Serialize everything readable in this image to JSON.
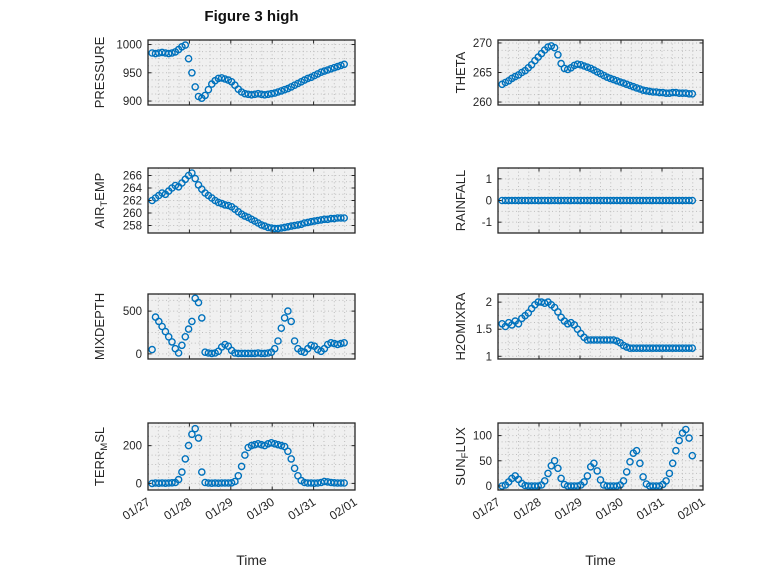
{
  "figure_title": "Figure 3 high",
  "xlabel": "Time",
  "colors": {
    "marker": "#0072BD",
    "axes": "#262626",
    "grid": "#bdbdbd",
    "plot_bg": "#f0f0f0",
    "figure_bg": "#ffffff"
  },
  "xlim": [
    0,
    5
  ],
  "x_ticks": [
    0,
    1,
    2,
    3,
    4,
    5
  ],
  "x_tick_labels": [
    "01/27",
    "01/28",
    "01/29",
    "01/30",
    "01/31",
    "02/01"
  ],
  "x": [
    0.1,
    0.18,
    0.26,
    0.34,
    0.42,
    0.5,
    0.58,
    0.66,
    0.74,
    0.82,
    0.9,
    0.98,
    1.06,
    1.14,
    1.22,
    1.3,
    1.38,
    1.46,
    1.54,
    1.62,
    1.7,
    1.78,
    1.86,
    1.94,
    2.02,
    2.1,
    2.18,
    2.26,
    2.34,
    2.42,
    2.5,
    2.58,
    2.66,
    2.74,
    2.82,
    2.9,
    2.98,
    3.06,
    3.14,
    3.22,
    3.3,
    3.38,
    3.46,
    3.54,
    3.62,
    3.7,
    3.78,
    3.86,
    3.94,
    4.02,
    4.1,
    4.18,
    4.26,
    4.34,
    4.42,
    4.5,
    4.58,
    4.66,
    4.74
  ],
  "chart_data": [
    {
      "type": "scatter",
      "ylabel": "PRESSURE",
      "ylabel_parts": [
        {
          "text": "PRESSURE"
        }
      ],
      "yticks": [
        900,
        950,
        1000
      ],
      "ylim": [
        893,
        1008
      ],
      "y": [
        985,
        984,
        985,
        986,
        985,
        984,
        985,
        987,
        991,
        996,
        999,
        975,
        950,
        925,
        908,
        905,
        910,
        920,
        930,
        936,
        940,
        941,
        939,
        937,
        934,
        928,
        921,
        916,
        913,
        912,
        911,
        912,
        913,
        912,
        911,
        912,
        913,
        914,
        916,
        918,
        920,
        922,
        925,
        928,
        931,
        934,
        937,
        940,
        942,
        945,
        948,
        951,
        953,
        955,
        957,
        959,
        961,
        963,
        965
      ]
    },
    {
      "type": "scatter",
      "ylabel": "THETA",
      "ylabel_parts": [
        {
          "text": "THETA"
        }
      ],
      "yticks": [
        260,
        265,
        270
      ],
      "ylim": [
        259.5,
        270.5
      ],
      "y": [
        263,
        263.3,
        263.6,
        264,
        264.3,
        264.6,
        265,
        265.3,
        265.8,
        266.3,
        267,
        267.6,
        268.2,
        268.8,
        269.3,
        269.5,
        269.2,
        268,
        266.5,
        265.7,
        265.5,
        265.8,
        266.2,
        266.4,
        266.3,
        266.1,
        265.9,
        265.7,
        265.4,
        265.1,
        264.8,
        264.5,
        264.2,
        264,
        263.8,
        263.6,
        263.4,
        263.2,
        263,
        262.8,
        262.6,
        262.4,
        262.2,
        262,
        261.9,
        261.8,
        261.7,
        261.7,
        261.6,
        261.6,
        261.5,
        261.5,
        261.6,
        261.6,
        261.5,
        261.5,
        261.5,
        261.4,
        261.4
      ]
    },
    {
      "type": "scatter",
      "ylabel": "AIR_TEMP",
      "ylabel_parts": [
        {
          "text": "AIR"
        },
        {
          "text": "T",
          "sub": true
        },
        {
          "text": "EMP"
        }
      ],
      "yticks": [
        258,
        260,
        262,
        264,
        266
      ],
      "ylim": [
        256.8,
        267.2
      ],
      "y": [
        262,
        262.4,
        262.8,
        263.2,
        263,
        263.5,
        264,
        264.4,
        264.2,
        264.8,
        265.4,
        266,
        266.4,
        265.5,
        264.5,
        263.8,
        263.2,
        262.8,
        262.4,
        262,
        261.7,
        261.5,
        261.3,
        261.2,
        261,
        260.6,
        260.2,
        259.8,
        259.5,
        259.3,
        259,
        258.7,
        258.4,
        258.1,
        257.9,
        257.7,
        257.6,
        257.5,
        257.5,
        257.6,
        257.7,
        257.8,
        257.9,
        258,
        258.1,
        258.2,
        258.4,
        258.5,
        258.6,
        258.7,
        258.8,
        258.9,
        259,
        259,
        259.1,
        259.1,
        259.2,
        259.2,
        259.2
      ]
    },
    {
      "type": "scatter",
      "ylabel": "RAINFALL",
      "ylabel_parts": [
        {
          "text": "RAINFALL"
        }
      ],
      "yticks": [
        -1,
        0,
        1
      ],
      "ylim": [
        -1.5,
        1.5
      ],
      "y": [
        0,
        0,
        0,
        0,
        0,
        0,
        0,
        0,
        0,
        0,
        0,
        0,
        0,
        0,
        0,
        0,
        0,
        0,
        0,
        0,
        0,
        0,
        0,
        0,
        0,
        0,
        0,
        0,
        0,
        0,
        0,
        0,
        0,
        0,
        0,
        0,
        0,
        0,
        0,
        0,
        0,
        0,
        0,
        0,
        0,
        0,
        0,
        0,
        0,
        0,
        0,
        0,
        0,
        0,
        0,
        0,
        0,
        0,
        0
      ]
    },
    {
      "type": "scatter",
      "ylabel": "MIXDEPTH",
      "ylabel_parts": [
        {
          "text": "MIXDEPTH"
        }
      ],
      "yticks": [
        0,
        500
      ],
      "ylim": [
        -60,
        700
      ],
      "y": [
        50,
        430,
        380,
        320,
        260,
        200,
        140,
        60,
        10,
        100,
        200,
        290,
        380,
        650,
        600,
        420,
        20,
        10,
        5,
        10,
        30,
        80,
        110,
        90,
        40,
        10,
        5,
        5,
        5,
        5,
        5,
        5,
        10,
        5,
        5,
        10,
        20,
        60,
        150,
        300,
        420,
        500,
        380,
        150,
        60,
        30,
        20,
        60,
        100,
        90,
        50,
        30,
        60,
        110,
        130,
        120,
        110,
        120,
        130
      ]
    },
    {
      "type": "scatter",
      "ylabel": "H2OMIXRA",
      "ylabel_parts": [
        {
          "text": "H2OMIXRA"
        }
      ],
      "yticks": [
        1,
        1.5,
        2
      ],
      "ylim": [
        0.95,
        2.15
      ],
      "y": [
        1.6,
        1.55,
        1.62,
        1.58,
        1.65,
        1.6,
        1.7,
        1.75,
        1.8,
        1.88,
        1.95,
        2,
        2,
        1.98,
        2,
        1.95,
        1.9,
        1.82,
        1.72,
        1.65,
        1.6,
        1.62,
        1.58,
        1.5,
        1.42,
        1.35,
        1.3,
        1.3,
        1.3,
        1.3,
        1.3,
        1.3,
        1.3,
        1.3,
        1.3,
        1.28,
        1.25,
        1.2,
        1.17,
        1.15,
        1.15,
        1.15,
        1.15,
        1.15,
        1.15,
        1.15,
        1.15,
        1.15,
        1.15,
        1.15,
        1.15,
        1.15,
        1.15,
        1.15,
        1.15,
        1.15,
        1.15,
        1.15,
        1.15
      ]
    },
    {
      "type": "scatter",
      "ylabel": "TERR_MSL",
      "ylabel_parts": [
        {
          "text": "TERR"
        },
        {
          "text": "M",
          "sub": true
        },
        {
          "text": "SL"
        }
      ],
      "yticks": [
        0,
        200
      ],
      "ylim": [
        -35,
        320
      ],
      "y": [
        0,
        2,
        1,
        2,
        1,
        2,
        3,
        5,
        20,
        60,
        130,
        200,
        260,
        290,
        240,
        60,
        5,
        2,
        1,
        2,
        1,
        2,
        2,
        2,
        3,
        10,
        40,
        90,
        150,
        190,
        200,
        205,
        210,
        205,
        200,
        210,
        215,
        210,
        205,
        200,
        195,
        170,
        130,
        80,
        40,
        15,
        5,
        2,
        2,
        1,
        2,
        5,
        10,
        8,
        5,
        3,
        2,
        2,
        2
      ]
    },
    {
      "type": "scatter",
      "ylabel": "SUN_FLUX",
      "ylabel_parts": [
        {
          "text": "SUN"
        },
        {
          "text": "F",
          "sub": true
        },
        {
          "text": "LUX"
        }
      ],
      "yticks": [
        0,
        50,
        100
      ],
      "ylim": [
        -8,
        125
      ],
      "y": [
        0,
        2,
        8,
        15,
        20,
        13,
        5,
        1,
        0,
        0,
        0,
        0,
        2,
        10,
        25,
        40,
        50,
        35,
        15,
        3,
        0,
        0,
        0,
        0,
        2,
        8,
        20,
        38,
        45,
        30,
        12,
        2,
        0,
        0,
        0,
        0,
        2,
        10,
        28,
        48,
        65,
        70,
        45,
        18,
        4,
        0,
        0,
        0,
        0,
        3,
        10,
        25,
        45,
        70,
        90,
        105,
        112,
        95,
        60
      ]
    }
  ]
}
